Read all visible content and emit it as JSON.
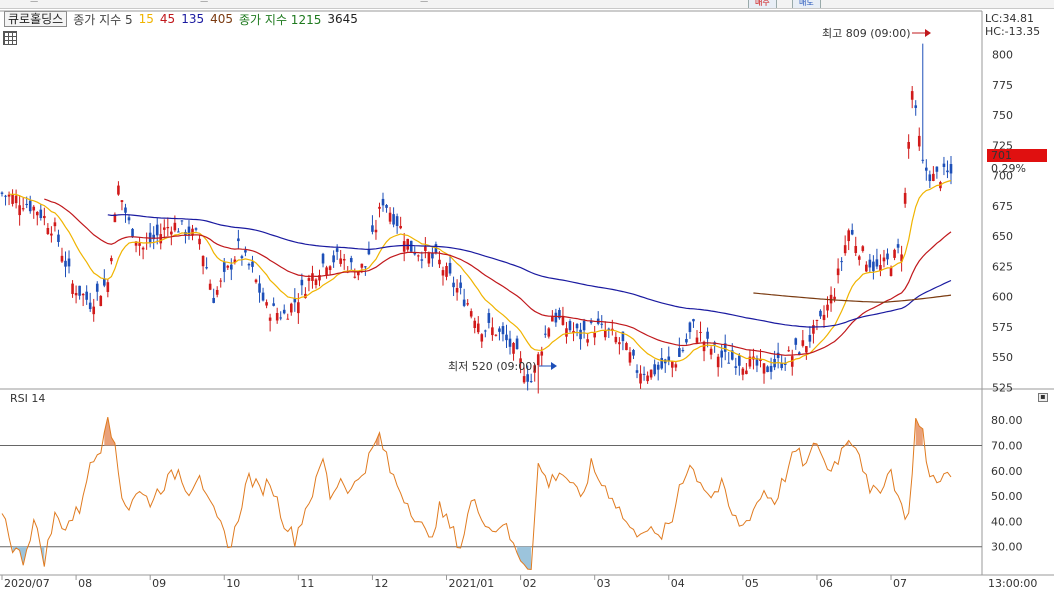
{
  "toolbar": {
    "buy_label": "매수",
    "sell_label": "매도"
  },
  "legend": {
    "stock_name": "큐로홀딩스",
    "ma_short_label": "종가 지수 5",
    "ma_short_periods": [
      "15",
      "45",
      "135",
      "405"
    ],
    "ma_long_label": "종가 지수 1215",
    "ma_long_period": "3645"
  },
  "colors": {
    "up": "#d11a1a",
    "down": "#1d4fb8",
    "ma15": "#f0b400",
    "ma45": "#c0181c",
    "ma135": "#1a1aa0",
    "ma405": "#7a3a10",
    "rsi": "#e07b20"
  },
  "chart_data": [
    {
      "type": "candlestick",
      "title": "",
      "y_ticks": [
        "800",
        "775",
        "750",
        "725",
        "700",
        "675",
        "650",
        "625",
        "600",
        "575",
        "550",
        "525"
      ],
      "ylim": [
        508,
        812
      ],
      "x_ticks": [
        "2020/07",
        "08",
        "09",
        "10",
        "11",
        "12",
        "2021/01",
        "02",
        "03",
        "04",
        "05",
        "06",
        "07"
      ],
      "x_tick_index": [
        0,
        21,
        42,
        63,
        84,
        105,
        126,
        147,
        168,
        189,
        210,
        231,
        252
      ],
      "last_index": 269,
      "series": [
        {
          "name": "종가",
          "points": [
            [
              0,
              685
            ],
            [
              5,
              680
            ],
            [
              10,
              672
            ],
            [
              15,
              655
            ],
            [
              20,
              610
            ],
            [
              25,
              595
            ],
            [
              30,
              612
            ],
            [
              33,
              690
            ],
            [
              36,
              660
            ],
            [
              40,
              640
            ],
            [
              44,
              650
            ],
            [
              48,
              660
            ],
            [
              52,
              655
            ],
            [
              56,
              648
            ],
            [
              60,
              600
            ],
            [
              63,
              615
            ],
            [
              67,
              640
            ],
            [
              71,
              620
            ],
            [
              75,
              590
            ],
            [
              80,
              585
            ],
            [
              84,
              600
            ],
            [
              88,
              618
            ],
            [
              92,
              630
            ],
            [
              96,
              632
            ],
            [
              100,
              622
            ],
            [
              103,
              625
            ],
            [
              108,
              680
            ],
            [
              112,
              662
            ],
            [
              116,
              640
            ],
            [
              120,
              635
            ],
            [
              124,
              628
            ],
            [
              128,
              610
            ],
            [
              132,
              595
            ],
            [
              136,
              575
            ],
            [
              140,
              572
            ],
            [
              144,
              560
            ],
            [
              147,
              545
            ],
            [
              150,
              530
            ],
            [
              153,
              560
            ],
            [
              156,
              585
            ],
            [
              160,
              575
            ],
            [
              164,
              568
            ],
            [
              168,
              575
            ],
            [
              172,
              570
            ],
            [
              176,
              560
            ],
            [
              180,
              540
            ],
            [
              184,
              538
            ],
            [
              188,
              542
            ],
            [
              192,
              550
            ],
            [
              196,
              575
            ],
            [
              200,
              560
            ],
            [
              204,
              550
            ],
            [
              208,
              548
            ],
            [
              212,
              545
            ],
            [
              216,
              540
            ],
            [
              220,
              545
            ],
            [
              224,
              552
            ],
            [
              228,
              562
            ],
            [
              232,
              578
            ],
            [
              236,
              605
            ],
            [
              240,
              655
            ],
            [
              244,
              635
            ],
            [
              248,
              622
            ],
            [
              252,
              630
            ],
            [
              255,
              640
            ],
            [
              258,
              770
            ],
            [
              261,
              708
            ],
            [
              264,
              698
            ],
            [
              266,
              700
            ],
            [
              269,
              701
            ]
          ]
        },
        {
          "name": "MA 15",
          "color": "#f0b400"
        },
        {
          "name": "MA 45",
          "color": "#c0181c"
        },
        {
          "name": "MA 135",
          "color": "#1a1aa0"
        },
        {
          "name": "MA 405",
          "color": "#7a3a10"
        }
      ],
      "annotations": [
        {
          "text": "최고 809 (09:00)",
          "x_index": 261,
          "value": 809
        },
        {
          "text": "최저 520 (09:00)",
          "x_index": 152,
          "value": 520
        }
      ],
      "current_value": {
        "label": "701",
        "change": "0.29%"
      },
      "corner": {
        "lc": "LC:34.81",
        "hc": "HC:-13.35"
      },
      "time_label": "13:00:00"
    },
    {
      "type": "line",
      "title": "RSI 14",
      "y_ticks": [
        "80.00",
        "70.00",
        "60.00",
        "50.00",
        "40.00",
        "30.00"
      ],
      "ylim": [
        20,
        86
      ],
      "reference_lines": [
        70,
        30
      ],
      "series": [
        {
          "name": "RSI 14",
          "points": [
            [
              0,
              45
            ],
            [
              3,
              30
            ],
            [
              6,
              25
            ],
            [
              9,
              40
            ],
            [
              12,
              25
            ],
            [
              15,
              42
            ],
            [
              18,
              38
            ],
            [
              22,
              45
            ],
            [
              24,
              58
            ],
            [
              28,
              70
            ],
            [
              30,
              84
            ],
            [
              32,
              68
            ],
            [
              34,
              50
            ],
            [
              36,
              46
            ],
            [
              38,
              52
            ],
            [
              42,
              48
            ],
            [
              46,
              55
            ],
            [
              50,
              60
            ],
            [
              53,
              52
            ],
            [
              56,
              60
            ],
            [
              58,
              48
            ],
            [
              60,
              43
            ],
            [
              63,
              35
            ],
            [
              65,
              30
            ],
            [
              68,
              48
            ],
            [
              70,
              58
            ],
            [
              73,
              52
            ],
            [
              76,
              56
            ],
            [
              80,
              40
            ],
            [
              83,
              33
            ],
            [
              86,
              45
            ],
            [
              89,
              55
            ],
            [
              91,
              65
            ],
            [
              93,
              50
            ],
            [
              96,
              57
            ],
            [
              99,
              52
            ],
            [
              103,
              62
            ],
            [
              107,
              74
            ],
            [
              110,
              60
            ],
            [
              113,
              52
            ],
            [
              116,
              45
            ],
            [
              119,
              38
            ],
            [
              121,
              32
            ],
            [
              124,
              45
            ],
            [
              127,
              38
            ],
            [
              130,
              30
            ],
            [
              133,
              48
            ],
            [
              136,
              43
            ],
            [
              139,
              36
            ],
            [
              142,
              40
            ],
            [
              145,
              30
            ],
            [
              148,
              24
            ],
            [
              150,
              22
            ],
            [
              152,
              62
            ],
            [
              155,
              55
            ],
            [
              158,
              60
            ],
            [
              161,
              56
            ],
            [
              164,
              48
            ],
            [
              167,
              62
            ],
            [
              170,
              55
            ],
            [
              173,
              50
            ],
            [
              176,
              42
            ],
            [
              179,
              35
            ],
            [
              182,
              38
            ],
            [
              186,
              33
            ],
            [
              190,
              40
            ],
            [
              192,
              55
            ],
            [
              195,
              62
            ],
            [
              198,
              56
            ],
            [
              201,
              50
            ],
            [
              204,
              54
            ],
            [
              207,
              42
            ],
            [
              210,
              38
            ],
            [
              213,
              45
            ],
            [
              216,
              52
            ],
            [
              219,
              48
            ],
            [
              222,
              58
            ],
            [
              225,
              68
            ],
            [
              228,
              62
            ],
            [
              231,
              72
            ],
            [
              234,
              60
            ],
            [
              237,
              65
            ],
            [
              240,
              74
            ],
            [
              243,
              68
            ],
            [
              246,
              50
            ],
            [
              249,
              54
            ],
            [
              252,
              60
            ],
            [
              255,
              45
            ],
            [
              257,
              42
            ],
            [
              259,
              80
            ],
            [
              261,
              74
            ],
            [
              263,
              57
            ],
            [
              266,
              58
            ],
            [
              269,
              57
            ]
          ]
        }
      ]
    }
  ]
}
